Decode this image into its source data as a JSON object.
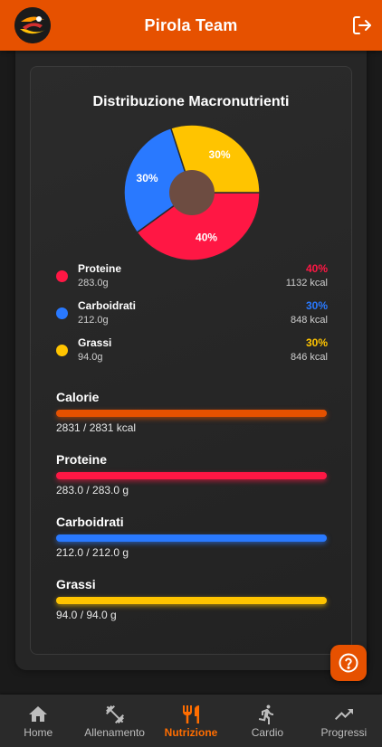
{
  "header": {
    "title": "Pirola Team",
    "logo_icon": "team-logo-icon",
    "logout_icon": "logout-icon"
  },
  "colors": {
    "accent": "#e65100",
    "proteine": "#ff1744",
    "carboidrati": "#2979ff",
    "grassi": "#ffc400",
    "pie_center": "#6d4c41"
  },
  "chart_data": {
    "type": "pie",
    "title": "Distribuzione Macronutrienti",
    "slices": [
      {
        "name": "Proteine",
        "value": 40,
        "label": "40%",
        "color": "#ff1744"
      },
      {
        "name": "Carboidrati",
        "value": 30,
        "label": "30%",
        "color": "#2979ff"
      },
      {
        "name": "Grassi",
        "value": 30,
        "label": "30%",
        "color": "#ffc400"
      }
    ]
  },
  "legend": [
    {
      "name": "Proteine",
      "grams": "283.0g",
      "pct": "40%",
      "kcal": "1132 kcal",
      "color": "#ff1744"
    },
    {
      "name": "Carboidrati",
      "grams": "212.0g",
      "pct": "30%",
      "kcal": "848 kcal",
      "color": "#2979ff"
    },
    {
      "name": "Grassi",
      "grams": "94.0g",
      "pct": "30%",
      "kcal": "846 kcal",
      "color": "#ffc400"
    }
  ],
  "bars": [
    {
      "label": "Calorie",
      "value": "2831 / 2831 kcal",
      "fraction": 1.0,
      "color": "#e65100"
    },
    {
      "label": "Proteine",
      "value": "283.0 / 283.0 g",
      "fraction": 1.0,
      "color": "#ff1744"
    },
    {
      "label": "Carboidrati",
      "value": "212.0 / 212.0 g",
      "fraction": 1.0,
      "color": "#2979ff"
    },
    {
      "label": "Grassi",
      "value": "94.0 / 94.0 g",
      "fraction": 1.0,
      "color": "#ffc400"
    }
  ],
  "help_icon": "help-icon",
  "nav": [
    {
      "label": "Home",
      "icon": "home-icon",
      "active": false
    },
    {
      "label": "Allenamento",
      "icon": "dumbbell-icon",
      "active": false
    },
    {
      "label": "Nutrizione",
      "icon": "cutlery-icon",
      "active": true
    },
    {
      "label": "Cardio",
      "icon": "running-icon",
      "active": false
    },
    {
      "label": "Progressi",
      "icon": "trending-up-icon",
      "active": false
    }
  ]
}
